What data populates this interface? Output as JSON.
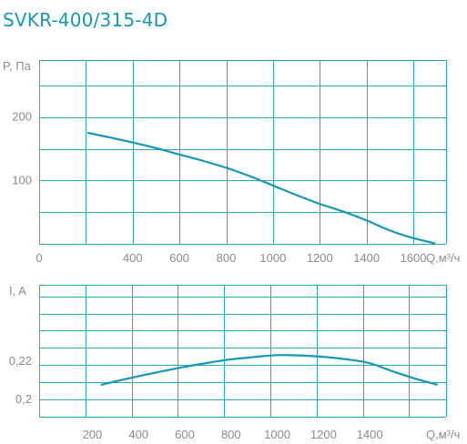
{
  "title": "SVKR-400/315-4D",
  "colors": {
    "curve": "#1797b8",
    "grid": "#2aa3c4",
    "tick_text": "#8c8c8c"
  },
  "chart_data": [
    {
      "type": "line",
      "name": "pressure",
      "ylabel": "P, Па",
      "xlabel": "Q,м³/ч",
      "xlim": [
        0,
        1740
      ],
      "ylim": [
        0,
        290
      ],
      "x_ticks": [
        0,
        400,
        600,
        800,
        1000,
        1200,
        1400,
        1600
      ],
      "x_tick_labels": [
        "0",
        "400",
        "600",
        "800",
        "1000",
        "1200",
        "1400",
        "1600"
      ],
      "y_ticks": [
        100,
        200
      ],
      "y_tick_labels": [
        "100",
        "200"
      ],
      "grid": true,
      "grid_x": [
        0,
        200,
        400,
        600,
        800,
        1000,
        1200,
        1400,
        1600
      ],
      "grid_y": [
        0,
        50,
        100,
        150,
        200,
        250
      ],
      "series": [
        {
          "x": [
            210,
            300,
            400,
            500,
            600,
            700,
            800,
            900,
            1000,
            1100,
            1200,
            1300,
            1400,
            1500,
            1600,
            1690
          ],
          "y": [
            175,
            168,
            160,
            151,
            141,
            131,
            120,
            107,
            92,
            77,
            63,
            51,
            37,
            21,
            9,
            1
          ]
        }
      ]
    },
    {
      "type": "line",
      "name": "current",
      "ylabel": "I, A",
      "xlabel": "Q,м³/ч",
      "xlim": [
        -30,
        1730
      ],
      "ylim": [
        0.191,
        0.26
      ],
      "x_ticks": [
        200,
        400,
        600,
        800,
        1000,
        1200,
        1400
      ],
      "x_tick_labels": [
        "200",
        "400",
        "600",
        "800",
        "1000",
        "1200",
        "1400"
      ],
      "y_ticks": [
        0.2,
        0.22
      ],
      "y_tick_labels": [
        "0,2",
        "0,22"
      ],
      "grid": true,
      "grid_x": [
        -30,
        170,
        370,
        570,
        770,
        970,
        1170,
        1370,
        1570
      ],
      "grid_y": [
        0.191,
        0.2,
        0.209,
        0.218,
        0.227,
        0.236,
        0.245,
        0.254
      ],
      "series": [
        {
          "x": [
            240,
            300,
            400,
            500,
            600,
            700,
            800,
            900,
            1000,
            1100,
            1200,
            1300,
            1400,
            1500,
            1600,
            1690
          ],
          "y": [
            0.2077,
            0.2095,
            0.2122,
            0.2147,
            0.2171,
            0.2192,
            0.221,
            0.2222,
            0.2232,
            0.223,
            0.2223,
            0.221,
            0.219,
            0.2147,
            0.2108,
            0.2078
          ]
        }
      ]
    }
  ]
}
